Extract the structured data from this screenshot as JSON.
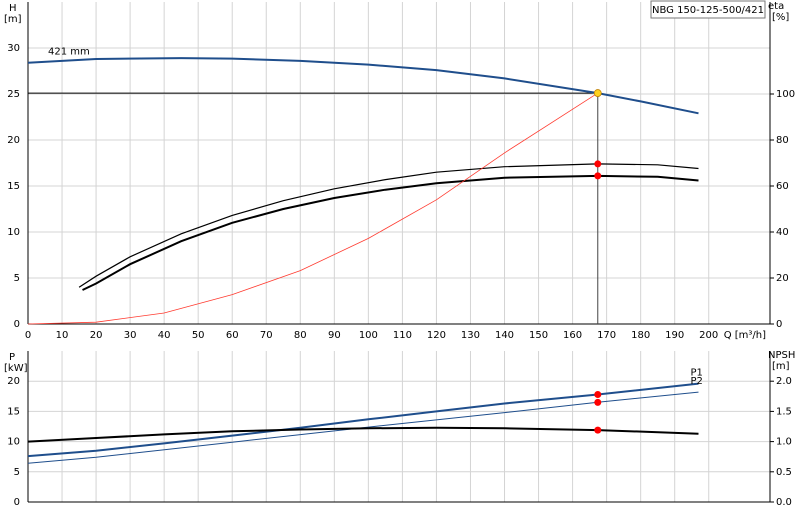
{
  "chart_data": [
    {
      "type": "line",
      "title": "NBG 150-125-500/421",
      "ylabel": "H",
      "yunit": "[m]",
      "y2label": "eta",
      "y2unit": "[%]",
      "xlabel": "Q [m³/h]",
      "xlim": [
        0,
        218
      ],
      "xticks": [
        0,
        10,
        20,
        30,
        40,
        50,
        60,
        70,
        80,
        90,
        100,
        110,
        120,
        130,
        140,
        150,
        160,
        170,
        180,
        190,
        200
      ],
      "ylim": [
        0,
        35
      ],
      "yticks": [
        0,
        5,
        10,
        15,
        20,
        25,
        30
      ],
      "y2lim": [
        0,
        140
      ],
      "y2ticks": [
        0,
        20,
        40,
        60,
        80,
        100
      ],
      "grid": true,
      "xtick_labels": true,
      "crosshair": true,
      "series": [
        {
          "name": "421 mm",
          "color": "#1f4e8c",
          "width": 2,
          "axis": "y",
          "x": [
            0,
            20,
            45,
            60,
            80,
            100,
            120,
            140,
            167.4,
            180,
            197
          ],
          "values": [
            28.4,
            28.8,
            28.9,
            28.85,
            28.6,
            28.2,
            27.6,
            26.7,
            25.1,
            24.2,
            22.9
          ]
        },
        {
          "color": "#000000",
          "width": 1.2,
          "axis": "y2",
          "x": [
            15,
            20,
            30,
            45,
            60,
            75,
            90,
            105,
            120,
            140,
            167.4,
            185,
            197
          ],
          "values": [
            16,
            20.8,
            29.2,
            39.2,
            47.2,
            53.6,
            58.8,
            62.8,
            66,
            68.4,
            69.6,
            69.2,
            67.6
          ]
        },
        {
          "color": "#000000",
          "width": 2,
          "axis": "y2",
          "x": [
            16,
            20,
            30,
            45,
            60,
            75,
            90,
            105,
            120,
            140,
            167.4,
            185,
            197
          ],
          "values": [
            14.8,
            17.6,
            26,
            36,
            44,
            50,
            54.8,
            58.4,
            61.2,
            63.6,
            64.4,
            64,
            62.4
          ]
        },
        {
          "color": "#ff3b30",
          "width": 0.8,
          "axis": "y",
          "x": [
            0,
            20,
            40,
            60,
            80,
            100,
            120,
            140,
            167.4
          ],
          "values": [
            0,
            0.2,
            1.2,
            3.2,
            5.8,
            9.3,
            13.5,
            18.6,
            25.1
          ]
        }
      ],
      "markers": [
        {
          "x": 167.4,
          "value": 25.1,
          "axis": "y",
          "color": "#ffd21f"
        },
        {
          "x": 167.4,
          "value": 69.6,
          "axis": "y2",
          "color": "#ff0000"
        },
        {
          "x": 167.4,
          "value": 64.4,
          "axis": "y2",
          "color": "#ff0000"
        }
      ]
    },
    {
      "type": "line",
      "ylabel": "P",
      "yunit": "[kW]",
      "y2label": "NPSH",
      "y2unit": "[m]",
      "xlim": [
        0,
        218
      ],
      "xticks": [
        0,
        10,
        20,
        30,
        40,
        50,
        60,
        70,
        80,
        90,
        100,
        110,
        120,
        130,
        140,
        150,
        160,
        170,
        180,
        190,
        200
      ],
      "ylim": [
        0,
        25
      ],
      "yticks": [
        0,
        5,
        10,
        15,
        20
      ],
      "y2lim": [
        0,
        2.5
      ],
      "y2ticks": [
        {
          "value": 0,
          "label": "0.0"
        },
        0.5,
        {
          "value": 1,
          "label": "1.0"
        },
        1.5,
        {
          "value": 2,
          "label": "2.0"
        }
      ],
      "grid": true,
      "xtick_labels": false,
      "crosshair": false,
      "series": [
        {
          "name": "P1",
          "color": "#1f4e8c",
          "width": 2,
          "axis": "y",
          "x": [
            0,
            20,
            40,
            60,
            80,
            100,
            120,
            140,
            167.4,
            197
          ],
          "values": [
            7.6,
            8.5,
            9.7,
            11.0,
            12.3,
            13.7,
            15.0,
            16.3,
            17.8,
            19.6
          ]
        },
        {
          "name": "P2",
          "color": "#1f4e8c",
          "width": 1,
          "axis": "y",
          "x": [
            0,
            20,
            60,
            100,
            140,
            167.4,
            197
          ],
          "values": [
            6.4,
            7.4,
            9.9,
            12.4,
            14.8,
            16.5,
            18.2
          ]
        },
        {
          "color": "#000000",
          "width": 2,
          "axis": "y2",
          "x": [
            0,
            20,
            40,
            60,
            80,
            100,
            120,
            140,
            167.4,
            197
          ],
          "values": [
            1.0,
            1.06,
            1.12,
            1.17,
            1.2,
            1.22,
            1.23,
            1.22,
            1.19,
            1.13
          ]
        }
      ],
      "markers": [
        {
          "x": 167.4,
          "value": 17.8,
          "axis": "y",
          "color": "#ff0000"
        },
        {
          "x": 167.4,
          "value": 16.5,
          "axis": "y",
          "color": "#ff0000"
        },
        {
          "x": 167.4,
          "value": 1.19,
          "axis": "y2",
          "color": "#ff0000"
        }
      ]
    }
  ]
}
